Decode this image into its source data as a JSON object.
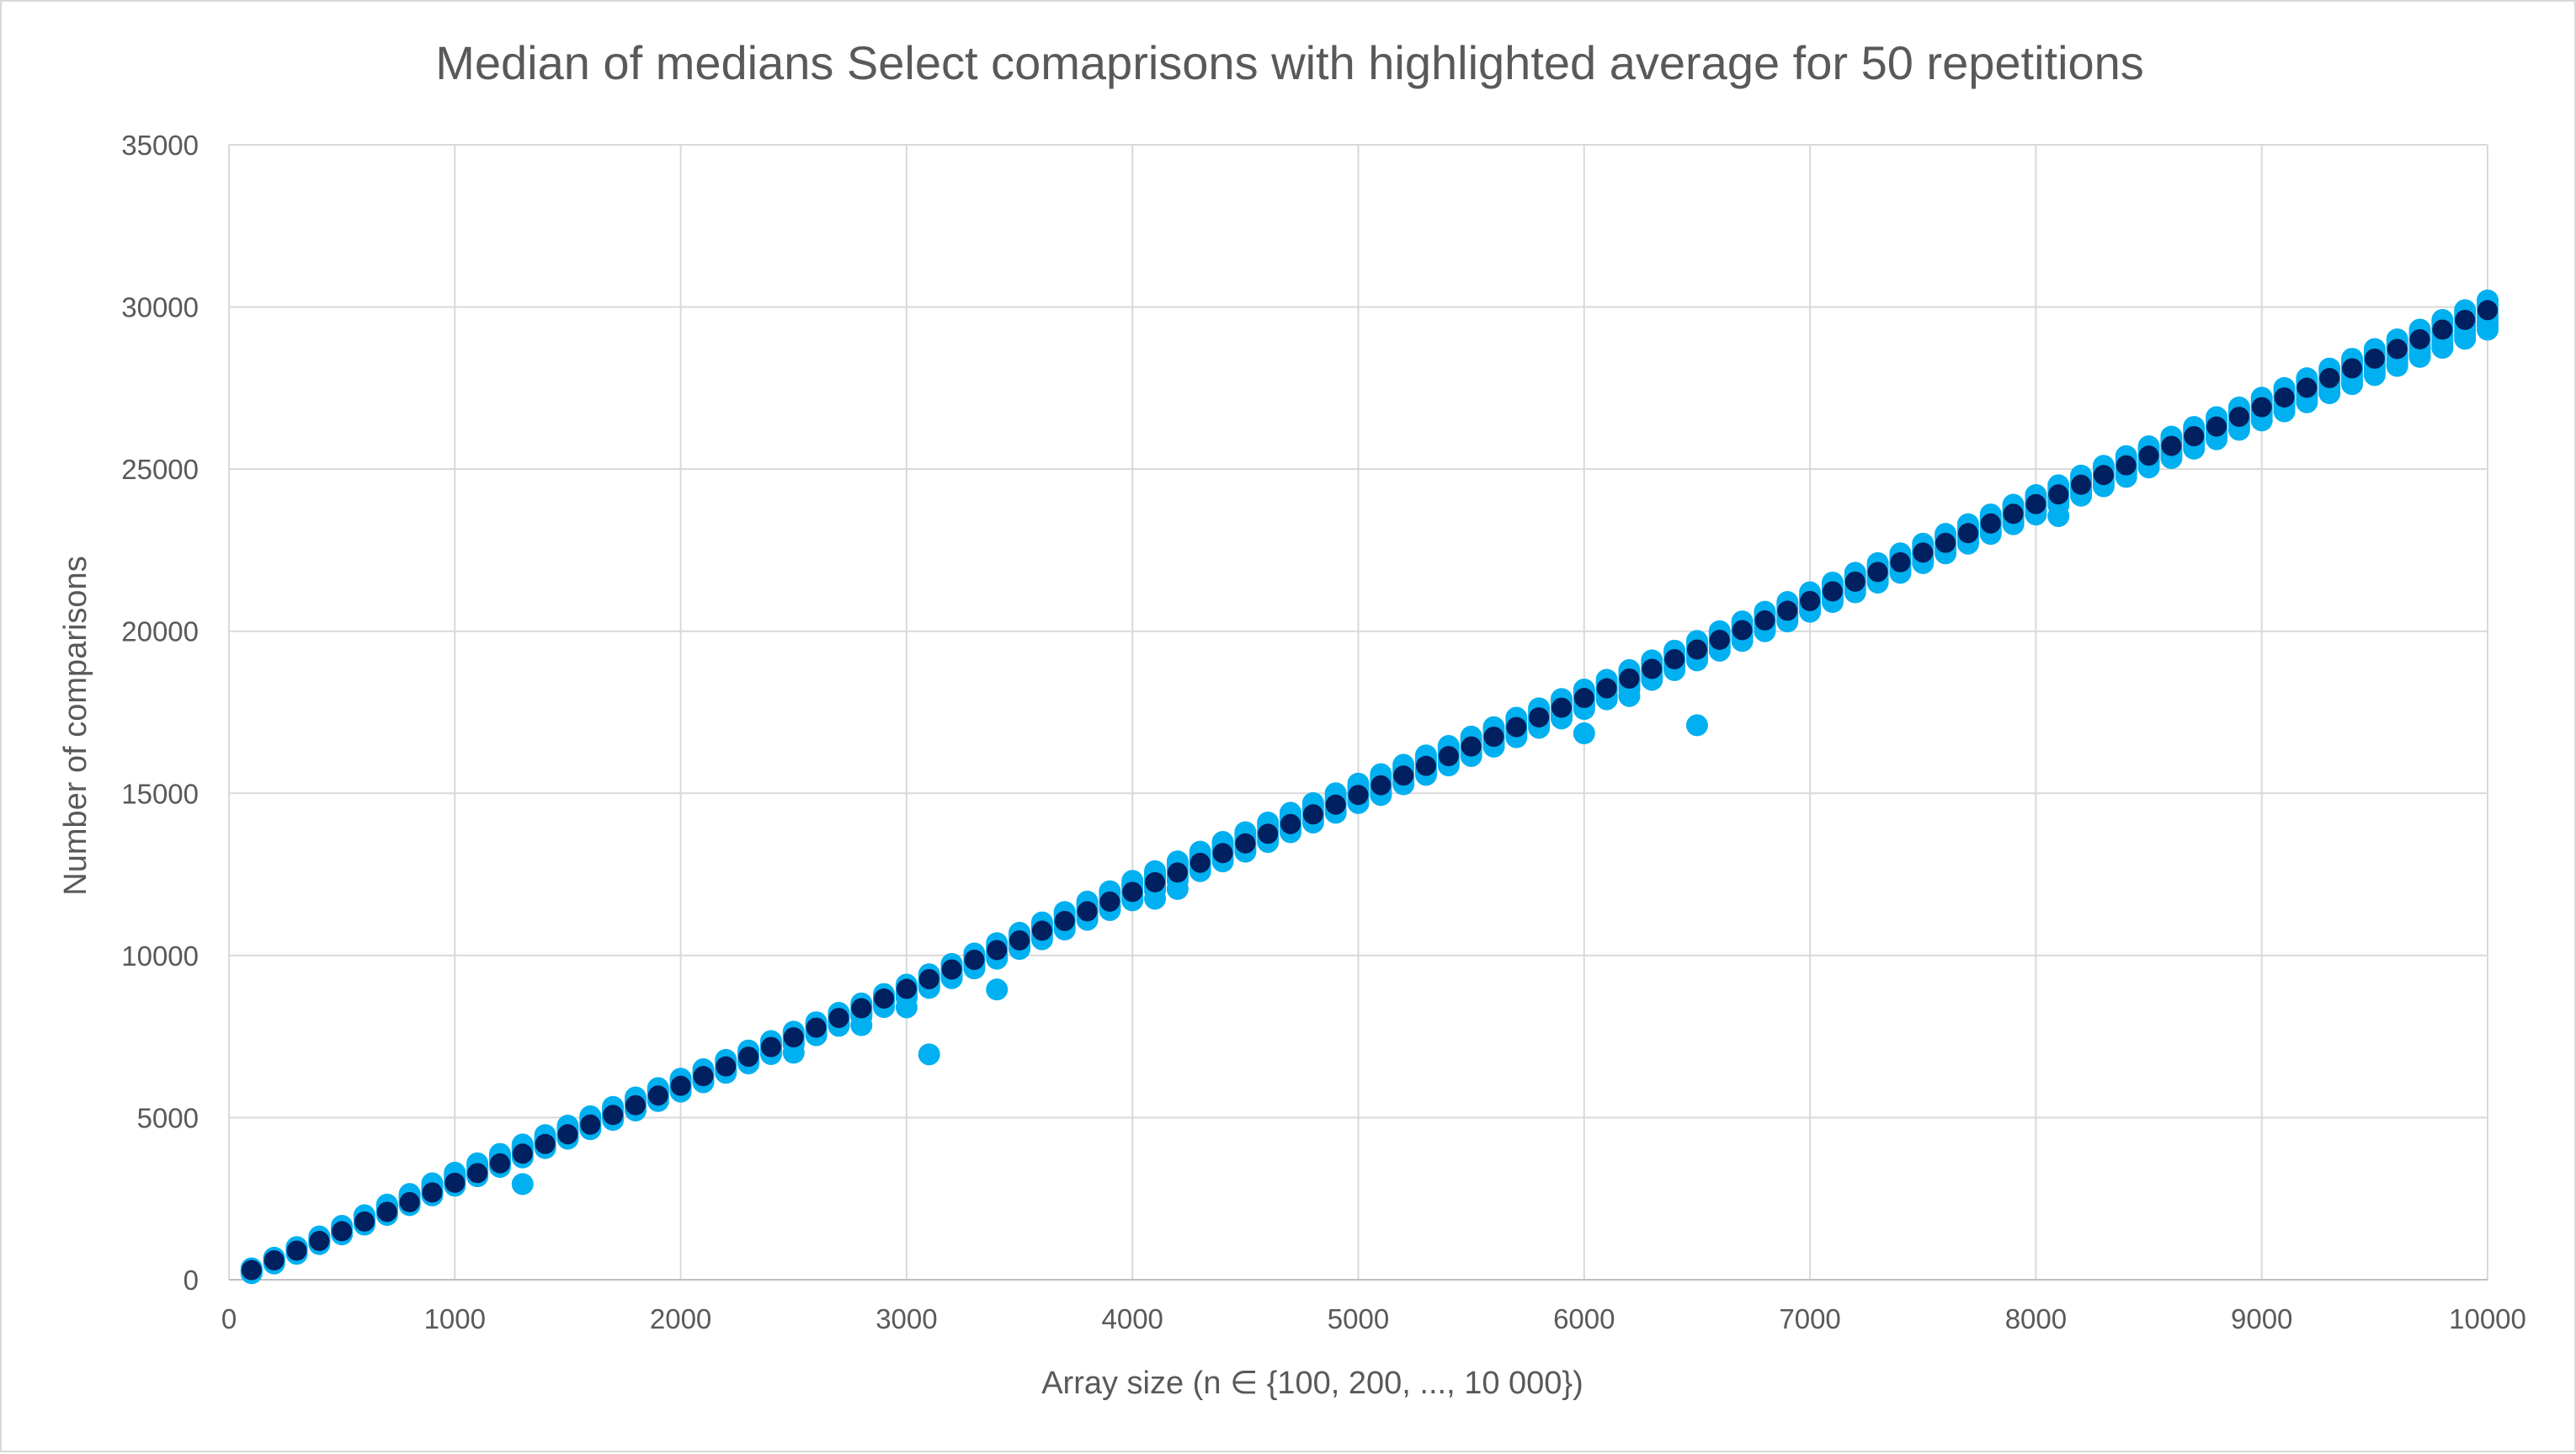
{
  "chart_data": {
    "type": "scatter",
    "title": "Median of medians Select comaprisons with highlighted average for 50 repetitions",
    "xlabel": "Array size (n ∈ {100, 200, ..., 10 000})",
    "ylabel": "Number of comparisons",
    "xlim": [
      0,
      10000
    ],
    "ylim": [
      0,
      35000
    ],
    "x_ticks": [
      0,
      1000,
      2000,
      3000,
      4000,
      5000,
      6000,
      7000,
      8000,
      9000,
      10000
    ],
    "y_ticks": [
      0,
      5000,
      10000,
      15000,
      20000,
      25000,
      30000,
      35000
    ],
    "grid": true,
    "legend": "none",
    "x_sequence": {
      "start": 100,
      "stop": 10000,
      "step": 100
    },
    "series": [
      {
        "role": "repetitions",
        "color": "#00b0f0",
        "spread_band": [
          [
            100,
            200,
            350
          ],
          [
            1000,
            2900,
            3300
          ],
          [
            2000,
            5800,
            6200
          ],
          [
            3000,
            8700,
            9100
          ],
          [
            4000,
            11700,
            12300
          ],
          [
            5000,
            14700,
            15300
          ],
          [
            6000,
            17600,
            18200
          ],
          [
            7000,
            20600,
            21200
          ],
          [
            8000,
            23600,
            24200
          ],
          [
            9000,
            26500,
            27200
          ],
          [
            10000,
            29300,
            30200
          ]
        ],
        "outliers": [
          [
            1300,
            2950
          ],
          [
            2500,
            7000
          ],
          [
            2800,
            7850
          ],
          [
            3000,
            8400
          ],
          [
            3100,
            6950
          ],
          [
            3400,
            8950
          ],
          [
            4100,
            11750
          ],
          [
            4200,
            12050
          ],
          [
            5100,
            14950
          ],
          [
            6000,
            16850
          ],
          [
            6200,
            18000
          ],
          [
            6500,
            17100
          ],
          [
            8100,
            23550
          ]
        ]
      },
      {
        "role": "average",
        "color": "#002060",
        "slope": 2.99,
        "intercept": 0
      }
    ]
  }
}
